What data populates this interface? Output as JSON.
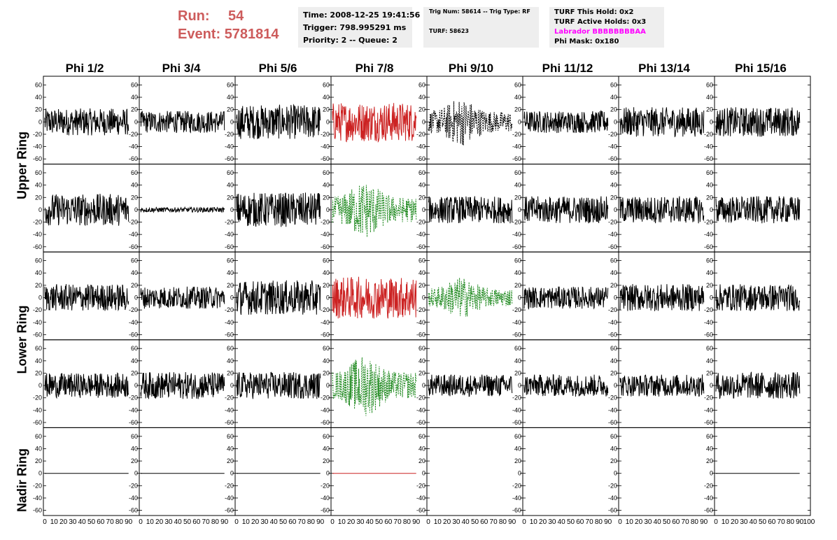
{
  "run_info": {
    "run_label": "Run:",
    "run_value": "54",
    "event_label": "Event:",
    "event_value": "5781814"
  },
  "time_box": {
    "time": "Time: 2008-12-25 19:41:56",
    "trigger": "Trigger: 798.995291 ms",
    "priority": "Priority: 2 -- Queue: 2"
  },
  "trig_box": {
    "trig": "Trig Num: 58614 -- Trig Type: RF",
    "turf": "TURF: 58623"
  },
  "turf_box": {
    "this_hold": "TURF This Hold: 0x2",
    "active_holds": "TURF Active Holds: 0x3",
    "labrador": "Labrador BBBBBBBBAA",
    "phi_mask": "Phi Mask: 0x180"
  },
  "colors": {
    "run_text": "#cd5c5c",
    "labrador": "#ff00ff",
    "trace_black": "#000000",
    "trace_red": "#cc2222",
    "trace_green": "#228b22",
    "box_bg": "#eeeeee"
  },
  "phi_labels": [
    "Phi 1/2",
    "Phi 3/4",
    "Phi 5/6",
    "Phi 7/8",
    "Phi 9/10",
    "Phi 11/12",
    "Phi 13/14",
    "Phi 15/16"
  ],
  "ring_labels": {
    "upper": "Upper Ring",
    "lower": "Lower Ring",
    "nadir": "Nadir Ring"
  },
  "y_ticks": [
    "60",
    "40",
    "20",
    "0",
    "-20",
    "-40",
    "-60"
  ],
  "x_ticks": [
    "0",
    "10",
    "20",
    "30",
    "40",
    "50",
    "60",
    "70",
    "80",
    "90",
    "100"
  ],
  "chart_data": {
    "type": "line",
    "ylim": [
      -65,
      65
    ],
    "xlim": [
      0,
      100
    ],
    "rows": 5,
    "columns": 8,
    "panels": [
      [
        {
          "style": "black",
          "amp": 22
        },
        {
          "style": "black",
          "amp": 18
        },
        {
          "style": "black",
          "amp": 28
        },
        {
          "style": "red",
          "amp": 32
        },
        {
          "style": "black-dashed",
          "amp": 28
        },
        {
          "style": "black",
          "amp": 18
        },
        {
          "style": "black",
          "amp": 24
        },
        {
          "style": "black",
          "amp": 24
        }
      ],
      [
        {
          "style": "black",
          "amp": 26
        },
        {
          "style": "black",
          "amp": 4
        },
        {
          "style": "black",
          "amp": 28
        },
        {
          "style": "green-dashed",
          "amp": 34
        },
        {
          "style": "black",
          "amp": 22
        },
        {
          "style": "black",
          "amp": 22
        },
        {
          "style": "black",
          "amp": 22
        },
        {
          "style": "black",
          "amp": 22
        }
      ],
      [
        {
          "style": "black",
          "amp": 22
        },
        {
          "style": "black",
          "amp": 18
        },
        {
          "style": "black",
          "amp": 28
        },
        {
          "style": "red",
          "amp": 34
        },
        {
          "style": "green-dashed",
          "amp": 24
        },
        {
          "style": "black",
          "amp": 18
        },
        {
          "style": "black",
          "amp": 22
        },
        {
          "style": "black",
          "amp": 22
        }
      ],
      [
        {
          "style": "black",
          "amp": 20
        },
        {
          "style": "black",
          "amp": 22
        },
        {
          "style": "black",
          "amp": 22
        },
        {
          "style": "green-dashed",
          "amp": 36
        },
        {
          "style": "black",
          "amp": 18
        },
        {
          "style": "black",
          "amp": 18
        },
        {
          "style": "black",
          "amp": 18
        },
        {
          "style": "black",
          "amp": 22
        }
      ],
      [
        {
          "style": "flat-black",
          "amp": 0
        },
        {
          "style": "flat-black",
          "amp": 0
        },
        {
          "style": "flat-black",
          "amp": 0
        },
        {
          "style": "flat-red",
          "amp": 0
        },
        {
          "style": "none",
          "amp": 0
        },
        {
          "style": "none",
          "amp": 0
        },
        {
          "style": "none",
          "amp": 0
        },
        {
          "style": "flat-black",
          "amp": 0
        }
      ]
    ]
  }
}
